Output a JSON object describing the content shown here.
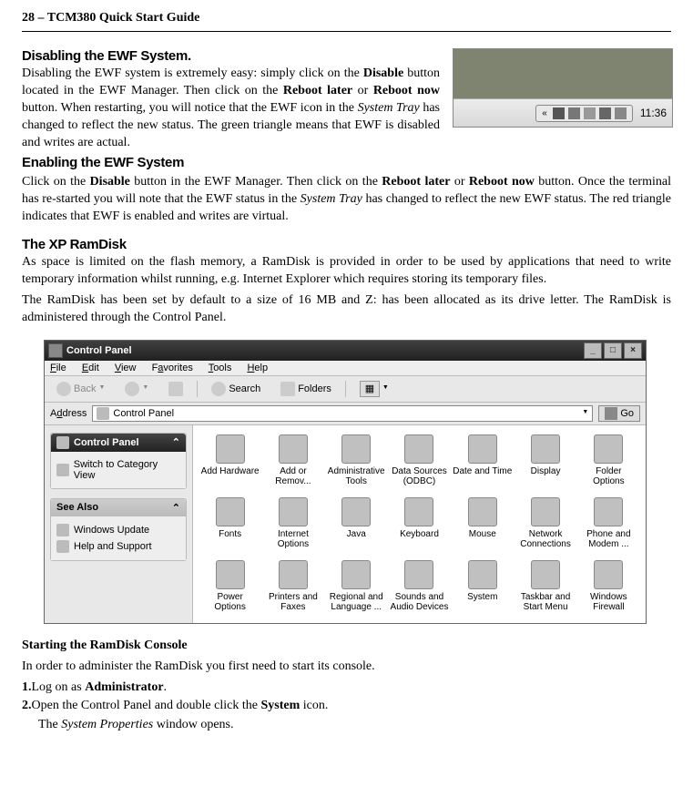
{
  "header": "28 – TCM380 Quick Start Guide",
  "s1": {
    "title": "Disabling the EWF System",
    "body_html": "Disabling the EWF system is extremely easy: simply click on the <b>Disable</b> button located in the EWF Manager. Then click on the <b>Reboot later</b> or <b>Reboot now</b> button. When restarting, you will notice that the EWF icon in the <i>System Tray</i> has changed to reflect the new status. The green triangle means that EWF is disabled and writes are actual."
  },
  "tray": {
    "clock": "11:36"
  },
  "s2": {
    "title": "Enabling the EWF System",
    "body_html": "Click on the <b>Disable</b> button in the EWF Manager. Then click on the <b>Reboot later</b> or <b>Reboot now</b> button. Once the terminal has re-started you will note that the EWF status in the <i>System Tray</i> has changed to reflect the new EWF status. The red triangle indicates that EWF is enabled and writes are virtual."
  },
  "s3": {
    "title": "The XP RamDisk",
    "p1": "As space is limited on the flash memory, a RamDisk is provided in order to be used by applications that need to write temporary information whilst running, e.g. Internet Explorer which requires storing its temporary files.",
    "p2": "The RamDisk has been set by default to a size of 16 MB and Z: has been allocated as its drive letter. The RamDisk is administered through the Control Panel."
  },
  "cp": {
    "title": "Control Panel",
    "menus": {
      "file": "File",
      "edit": "Edit",
      "view": "View",
      "fav": "Favorites",
      "tools": "Tools",
      "help": "Help"
    },
    "toolbar": {
      "back": "Back",
      "search": "Search",
      "folders": "Folders"
    },
    "address_label": "Address",
    "address_value": "Control Panel",
    "go": "Go",
    "panel1": {
      "title": "Control Panel",
      "item": "Switch to Category View"
    },
    "panel2": {
      "title": "See Also",
      "item1": "Windows Update",
      "item2": "Help and Support"
    },
    "icons": [
      "Add Hardware",
      "Add or Remov...",
      "Administrative Tools",
      "Data Sources (ODBC)",
      "Date and Time",
      "Display",
      "Folder Options",
      "Fonts",
      "Internet Options",
      "Java",
      "Keyboard",
      "Mouse",
      "Network Connections",
      "Phone and Modem ...",
      "Power Options",
      "Printers and Faxes",
      "Regional and Language ...",
      "Sounds and Audio Devices",
      "System",
      "Taskbar and Start Menu",
      "Windows Firewall"
    ]
  },
  "s4": {
    "title": "Starting the RamDisk Console",
    "intro": "In order to administer the RamDisk you first need to start its console.",
    "step1_html": "<span class='step-num'>1.</span>Log on as <b>Administrator</b>.",
    "step2_html": "<span class='step-num'>2.</span>Open the Control Panel and double click the <b>System</b> icon.",
    "step2_result_html": "The <i>System Properties</i> window opens."
  }
}
